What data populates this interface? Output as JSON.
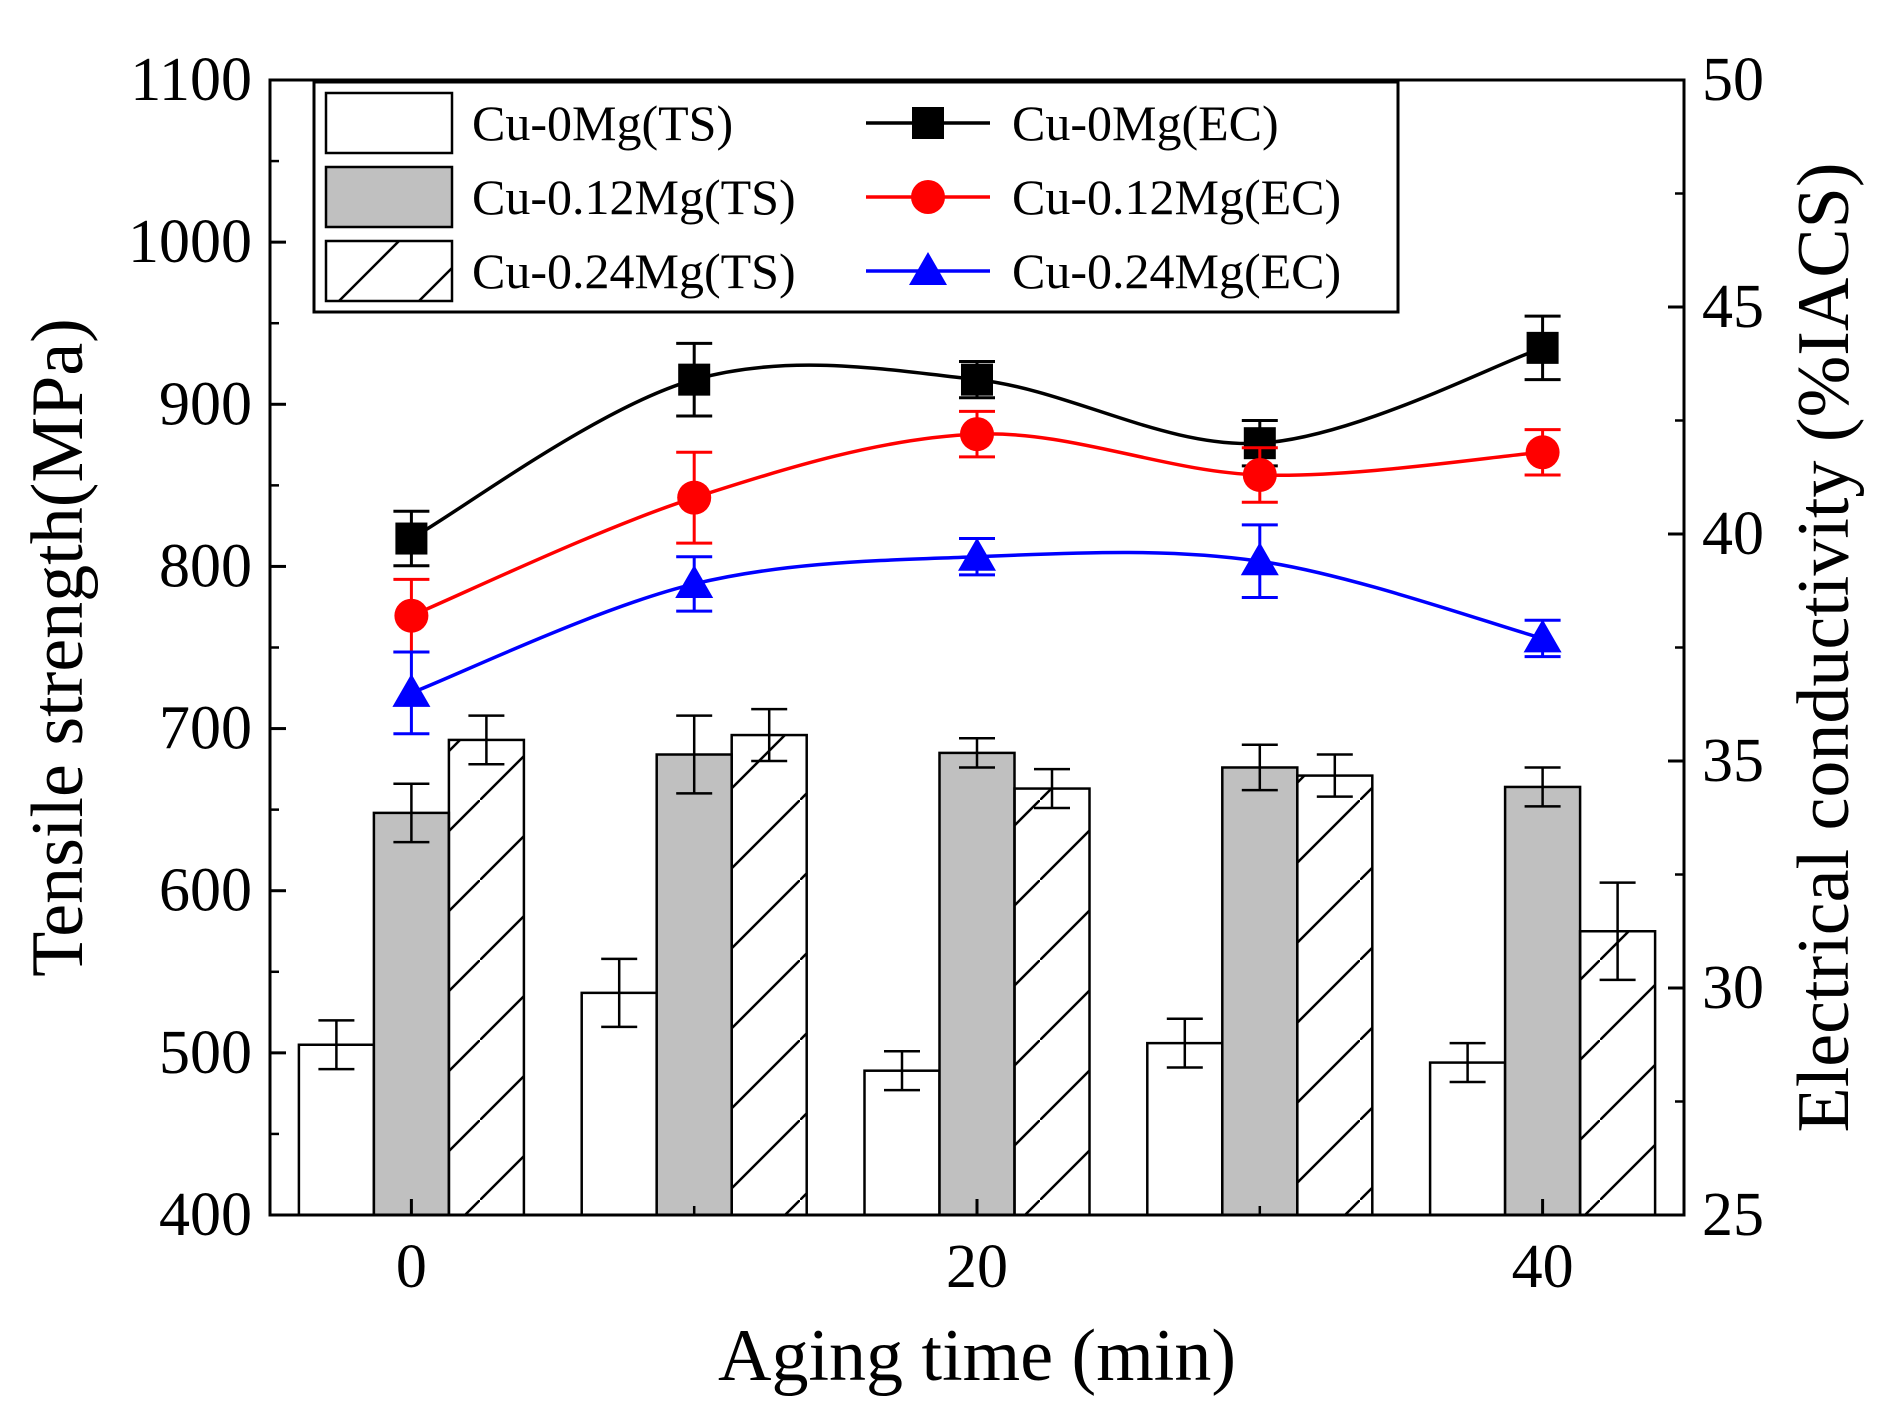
{
  "chart_data": {
    "type": "bar+line",
    "x_categories": [
      0,
      10,
      20,
      30,
      40
    ],
    "xlabel": "Aging time (min)",
    "x_ticks": [
      "0",
      "20",
      "40"
    ],
    "x_tick_values": [
      0,
      20,
      40
    ],
    "xlim": [
      -5,
      45
    ],
    "ylabel_left": "Tensile strength(MPa)",
    "ylim_left": [
      400,
      1100
    ],
    "y_ticks_left": [
      "400",
      "500",
      "600",
      "700",
      "800",
      "900",
      "1000",
      "1100"
    ],
    "ylabel_right": "Electrical conductivity (%IACS)",
    "ylim_right": [
      25,
      50
    ],
    "y_ticks_right": [
      "25",
      "30",
      "35",
      "40",
      "45",
      "50"
    ],
    "bar_series": [
      {
        "name": "Cu-0Mg(TS)",
        "pattern": "open",
        "color": "#ffffff",
        "values": [
          505,
          537,
          489,
          506,
          494
        ],
        "errors": [
          15,
          21,
          12,
          15,
          12
        ]
      },
      {
        "name": "Cu-0.12Mg(TS)",
        "pattern": "gray",
        "color": "#c0c0c0",
        "values": [
          648,
          684,
          685,
          676,
          664
        ],
        "errors": [
          18,
          24,
          9,
          14,
          12
        ]
      },
      {
        "name": "Cu-0.24Mg(TS)",
        "pattern": "hatched",
        "color": "#ffffff",
        "values": [
          693,
          696,
          663,
          671,
          575
        ],
        "errors": [
          15,
          16,
          12,
          13,
          30
        ]
      }
    ],
    "line_series": [
      {
        "name": "Cu-0Mg(EC)",
        "marker": "square",
        "color": "#000000",
        "values": [
          39.9,
          43.4,
          43.4,
          42.0,
          44.1
        ],
        "errors": [
          0.6,
          0.8,
          0.4,
          0.5,
          0.7
        ]
      },
      {
        "name": "Cu-0.12Mg(EC)",
        "marker": "circle",
        "color": "#ff0000",
        "values": [
          38.2,
          40.8,
          42.2,
          41.3,
          41.8
        ],
        "errors": [
          0.8,
          1.0,
          0.5,
          0.6,
          0.5
        ]
      },
      {
        "name": "Cu-0.24Mg(EC)",
        "marker": "triangle",
        "color": "#0000ff",
        "values": [
          36.5,
          38.9,
          39.5,
          39.4,
          37.7
        ],
        "errors": [
          0.9,
          0.6,
          0.4,
          0.8,
          0.4
        ]
      }
    ],
    "legend": {
      "position": "top-left",
      "entries": [
        "Cu-0Mg(TS)",
        "Cu-0Mg(EC)",
        "Cu-0.12Mg(TS)",
        "Cu-0.12Mg(EC)",
        "Cu-0.24Mg(TS)",
        "Cu-0.24Mg(EC)"
      ]
    }
  }
}
